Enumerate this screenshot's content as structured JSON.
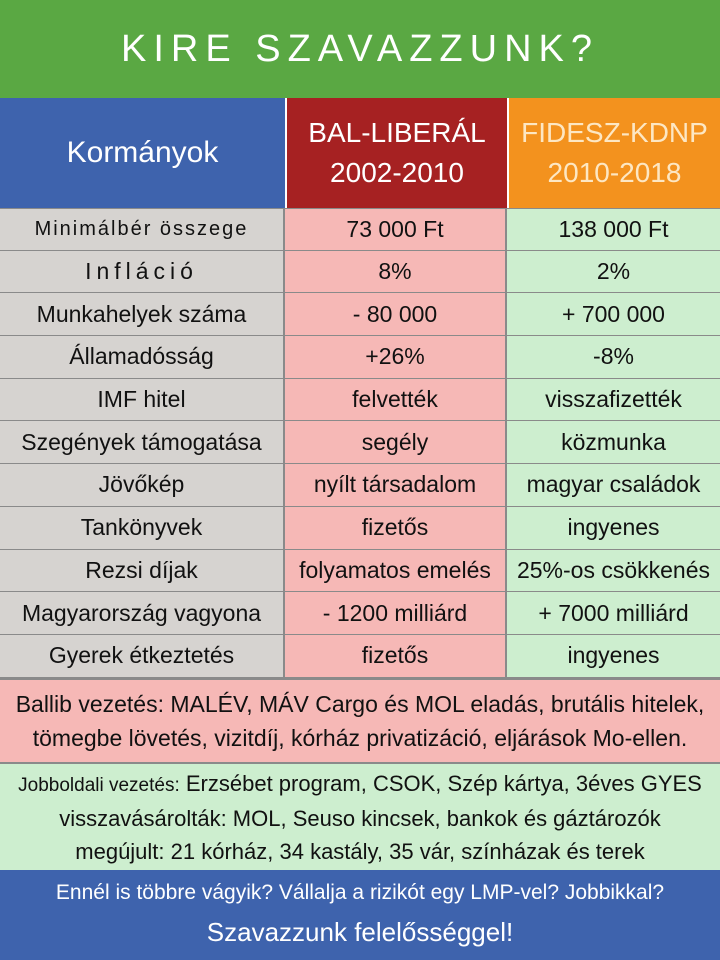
{
  "title": "KIRE SZAVAZZUNK?",
  "header": {
    "label": "Kormányok",
    "left": {
      "name": "BAL-LIBERÁL",
      "years": "2002-2010"
    },
    "right": {
      "name": "FIDESZ-KDNP",
      "years": "2010-2018"
    }
  },
  "rows": [
    {
      "label": "Minimálbér összege",
      "left": "73 000 Ft",
      "right": "138 000 Ft"
    },
    {
      "label": "Infláció",
      "left": "8%",
      "right": "2%"
    },
    {
      "label": "Munkahelyek száma",
      "left": "- 80 000",
      "right": "+ 700 000"
    },
    {
      "label": "Államadósság",
      "left": "+26%",
      "right": "-8%"
    },
    {
      "label": "IMF hitel",
      "left": "felvették",
      "right": "visszafizették"
    },
    {
      "label": "Szegények támogatása",
      "left": "segély",
      "right": "közmunka"
    },
    {
      "label": "Jövőkép",
      "left": "nyílt társadalom",
      "right": "magyar családok"
    },
    {
      "label": "Tankönyvek",
      "left": "fizetős",
      "right": "ingyenes"
    },
    {
      "label": "Rezsi díjak",
      "left": "folyamatos emelés",
      "right": "25%-os csökkenés"
    },
    {
      "label": "Magyarország vagyona",
      "left": "- 1200 milliárd",
      "right": "+ 7000 milliárd"
    },
    {
      "label": "Gyerek étkeztetés",
      "left": "fizetős",
      "right": "ingyenes"
    }
  ],
  "notes_left": {
    "line1": "Ballib vezetés: MALÉV, MÁV Cargo és MOL eladás, brutális hitelek,",
    "line2": "tömegbe lövetés, vizitdíj, kórház privatizáció, eljárások Mo-ellen."
  },
  "notes_right": {
    "prefix": "Jobboldali vezetés:",
    "line1_rest": " Erzsébet program, CSOK, Szép kártya, 3éves GYES",
    "line2": "visszavásárolták: MOL, Seuso kincsek, bankok és gáztározók",
    "line3": "megújult: 21 kórház, 34 kastály, 35 vár, színházak és terek"
  },
  "footer": {
    "question": "Ennél is többre vágyik? Vállalja a rizikót egy LMP-vel? Jobbikkal?",
    "cta": "Szavazzunk felelősséggel!"
  },
  "colors": {
    "green": "#5aa843",
    "blue": "#3e63ad",
    "red": "#a62122",
    "orange": "#f3921e",
    "pink": "#f6b8b6",
    "mint": "#cdeecf",
    "gray": "#d6d3d0"
  }
}
